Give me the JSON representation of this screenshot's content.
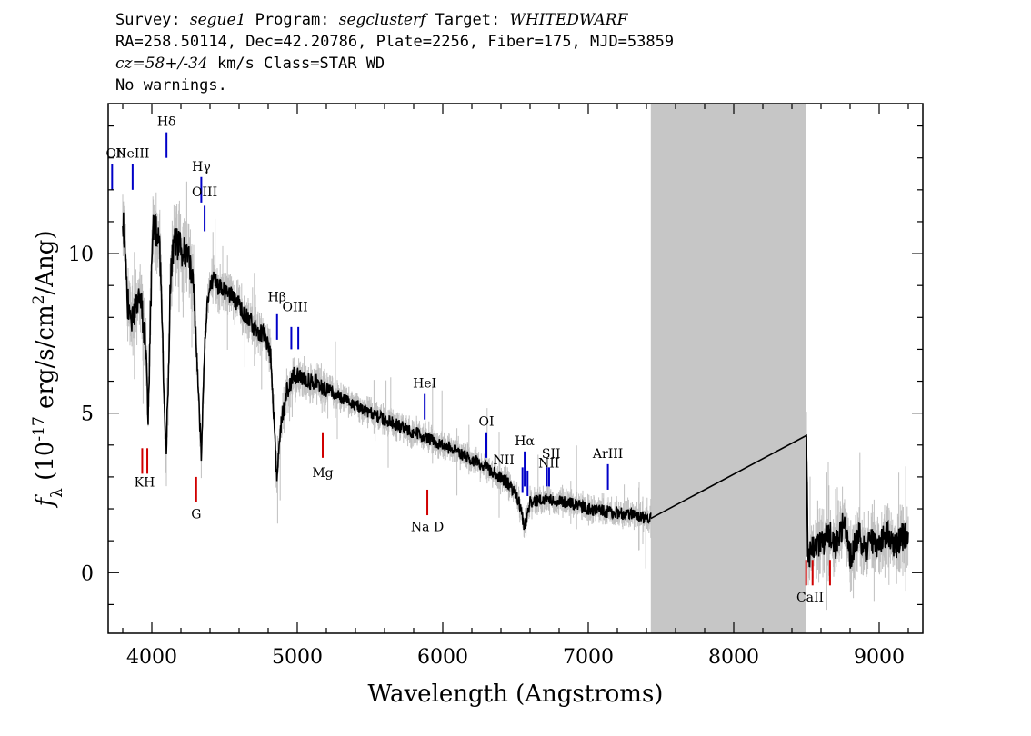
{
  "header": {
    "line1": {
      "survey_label": "Survey: ",
      "survey": "segue1",
      "program_label": " Program: ",
      "program": "segclusterf",
      "target_label": " Target: ",
      "target": "WHITEDWARF"
    },
    "line2": "RA=258.50114, Dec=42.20786, Plate=2256, Fiber=175, MJD=53859",
    "line3": {
      "cz": "cz=58+/-34",
      "rest": " km/s Class=STAR WD"
    },
    "line4": "No warnings."
  },
  "chart_data": {
    "type": "line",
    "xlabel": "Wavelength (Angstroms)",
    "ylabel": "f_λ (10^-17 erg/s/cm^2/Ang)",
    "xlim": [
      3700,
      9300
    ],
    "ylim": [
      -1.9,
      14.7
    ],
    "xticks": [
      4000,
      5000,
      6000,
      7000,
      8000,
      9000
    ],
    "yticks": [
      0,
      5,
      10
    ],
    "masked_region": [
      7430,
      8500
    ],
    "colors": {
      "spectrum": "#000000",
      "error": "#c0c0c0",
      "emission": "#0000c8",
      "absorption": "#d00000",
      "sky": "#000000",
      "mask": "#c6c6c6"
    },
    "series": [
      {
        "x": [
          3800,
          3830,
          3870,
          3900,
          3930,
          3960,
          3975,
          3990,
          4010,
          4050,
          4075,
          4101,
          4130,
          4160,
          4200,
          4250,
          4290,
          4320,
          4340,
          4360,
          4380,
          4420,
          4470,
          4520,
          4600,
          4700,
          4780,
          4820,
          4861,
          4890,
          4930,
          4980,
          5050,
          5150,
          5300,
          5500,
          5700,
          5900,
          6100,
          6300,
          6450,
          6520,
          6563,
          6600,
          6700,
          6850,
          7000,
          7150,
          7300,
          7400,
          7430,
          8500,
          8510,
          8560,
          8600,
          8650,
          8700,
          8760,
          8800,
          8860,
          8900,
          8950,
          9000,
          9050,
          9100,
          9150,
          9200
        ],
        "y": [
          11.3,
          8.5,
          8.0,
          8.4,
          8.3,
          7.1,
          4.6,
          8.2,
          10.8,
          10.6,
          7.1,
          3.8,
          9.5,
          10.4,
          10.1,
          9.9,
          8.8,
          5.6,
          3.7,
          6.7,
          8.5,
          9.2,
          8.9,
          8.8,
          8.4,
          7.7,
          7.4,
          6.7,
          2.9,
          4.7,
          5.7,
          6.2,
          6.1,
          5.9,
          5.5,
          5.0,
          4.6,
          4.2,
          3.8,
          3.3,
          2.8,
          2.3,
          1.4,
          2.2,
          2.3,
          2.2,
          2.0,
          1.9,
          1.8,
          1.7,
          1.7,
          4.3,
          0.5,
          1.0,
          0.8,
          1.3,
          0.8,
          1.6,
          0.5,
          1.2,
          0.7,
          1.0,
          0.8,
          1.3,
          0.8,
          1.1,
          1.2
        ]
      }
    ],
    "line_labels": [
      {
        "label": "OII",
        "wave": 3727,
        "type": "emission",
        "lab_y": 13.0,
        "tick_y": [
          12.8,
          12.0
        ]
      },
      {
        "label": "NeIII",
        "wave": 3868,
        "type": "emission",
        "lab_y": 13.0,
        "tick_y": [
          12.8,
          12.0
        ]
      },
      {
        "label": "Hδ",
        "wave": 4101,
        "type": "emission",
        "lab_y": 14.0,
        "tick_y": [
          13.8,
          13.0
        ]
      },
      {
        "label": "Hγ",
        "wave": 4340,
        "type": "emission",
        "lab_y": 12.6,
        "tick_y": [
          12.4,
          11.6
        ]
      },
      {
        "label": "OIII",
        "wave": 4363,
        "type": "emission",
        "lab_y": 11.8,
        "tick_y": [
          11.5,
          10.7
        ]
      },
      {
        "label": "Hβ",
        "wave": 4861,
        "type": "emission",
        "lab_y": 8.5,
        "tick_y": [
          8.1,
          7.3
        ]
      },
      {
        "label": "OIII",
        "wave": 4959,
        "type": "emission",
        "lab_y": 8.2,
        "tick_y": [
          7.7,
          7.0
        ]
      },
      {
        "label": "OIII",
        "wave": 5007,
        "type": "emission",
        "lab_y": 8.2,
        "tick_y": [
          7.7,
          7.0
        ]
      },
      {
        "label": "HeI",
        "wave": 5876,
        "type": "emission",
        "lab_y": 5.8,
        "tick_y": [
          5.6,
          4.8
        ]
      },
      {
        "label": "OI",
        "wave": 6300,
        "type": "emission",
        "lab_y": 4.6,
        "tick_y": [
          4.4,
          3.6
        ]
      },
      {
        "label": "NII",
        "wave": 6548,
        "type": "emission",
        "lab_y": 3.4,
        "tick_y": [
          3.3,
          2.5
        ]
      },
      {
        "label": "Hα",
        "wave": 6563,
        "type": "emission",
        "lab_y": 4.0,
        "tick_y": [
          3.8,
          2.7
        ]
      },
      {
        "label": "NII",
        "wave": 6583,
        "type": "emission",
        "lab_y": 3.4,
        "tick_y": [
          3.2,
          2.4
        ]
      },
      {
        "label": "SII",
        "wave": 6716,
        "type": "emission",
        "lab_y": 3.6,
        "tick_y": [
          3.3,
          2.7
        ]
      },
      {
        "label": "SII",
        "wave": 6731,
        "type": "emission",
        "lab_y": 3.6,
        "tick_y": [
          3.3,
          2.7
        ]
      },
      {
        "label": "ArIII",
        "wave": 7135,
        "type": "emission",
        "lab_y": 3.6,
        "tick_y": [
          3.4,
          2.6
        ]
      },
      {
        "label": "K",
        "wave": 3934,
        "type": "absorption",
        "lab_y": 2.7,
        "tick_y": [
          3.9,
          3.1
        ]
      },
      {
        "label": "H",
        "wave": 3969,
        "type": "absorption",
        "lab_y": 2.7,
        "tick_y": [
          3.9,
          3.1
        ]
      },
      {
        "label": "G",
        "wave": 4305,
        "type": "absorption",
        "lab_y": 1.7,
        "tick_y": [
          3.0,
          2.2
        ]
      },
      {
        "label": "Mg",
        "wave": 5175,
        "type": "absorption",
        "lab_y": 3.0,
        "tick_y": [
          4.4,
          3.6
        ]
      },
      {
        "label": "Na D",
        "wave": 5894,
        "type": "absorption",
        "lab_y": 1.3,
        "tick_y": [
          2.6,
          1.8
        ]
      },
      {
        "label": "CaII",
        "wave": 8498,
        "type": "absorption",
        "lab_y": -0.9,
        "tick_y": [
          0.4,
          -0.4
        ]
      },
      {
        "label": "CaII",
        "wave": 8542,
        "type": "absorption",
        "lab_y": -0.9,
        "tick_y": [
          0.4,
          -0.4
        ]
      },
      {
        "label": "CaII",
        "wave": 8662,
        "type": "absorption",
        "lab_y": -0.9,
        "tick_y": [
          0.4,
          -0.4
        ]
      }
    ],
    "label_names": {
      "KH": "KH",
      "NaD": "Na D",
      "CaII": "CaII"
    }
  }
}
